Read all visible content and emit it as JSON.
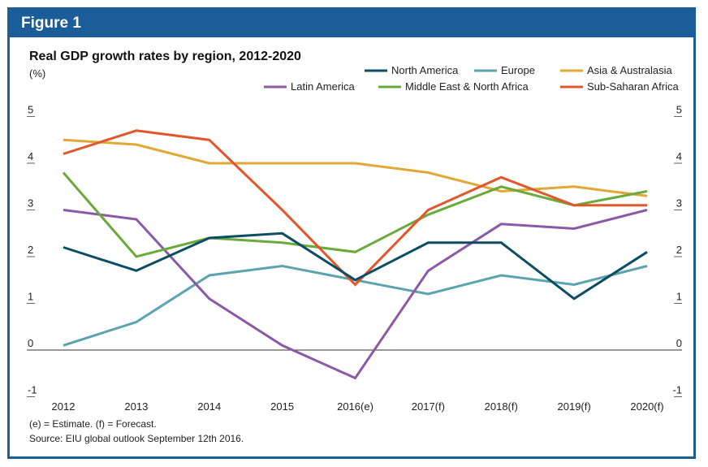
{
  "figure_label": "Figure 1",
  "chart_data": {
    "type": "line",
    "title": "Real GDP growth rates by region, 2012-2020",
    "ylabel": "(%)",
    "xlabel": "",
    "categories": [
      "2012",
      "2013",
      "2014",
      "2015",
      "2016(e)",
      "2017(f)",
      "2018(f)",
      "2019(f)",
      "2020(f)"
    ],
    "yticks": [
      5,
      4,
      3,
      2,
      1,
      0,
      -1
    ],
    "ylim": [
      -1,
      5
    ],
    "grid": false,
    "legend_position": "top-right",
    "series": [
      {
        "name": "North America",
        "color": "#0d4d63",
        "values": [
          2.2,
          1.7,
          2.4,
          2.5,
          1.5,
          2.3,
          2.3,
          1.1,
          2.1
        ]
      },
      {
        "name": "Europe",
        "color": "#5ba3ae",
        "values": [
          0.1,
          0.6,
          1.6,
          1.8,
          1.5,
          1.2,
          1.6,
          1.4,
          1.8
        ]
      },
      {
        "name": "Asia & Australasia",
        "color": "#e1a836",
        "values": [
          4.5,
          4.4,
          4.0,
          4.0,
          4.0,
          3.8,
          3.4,
          3.5,
          3.3
        ]
      },
      {
        "name": "Latin America",
        "color": "#8a5aa6",
        "values": [
          3.0,
          2.8,
          1.1,
          0.1,
          -0.6,
          1.7,
          2.7,
          2.6,
          3.0
        ]
      },
      {
        "name": "Middle East & North Africa",
        "color": "#6aaa3a",
        "values": [
          3.8,
          2.0,
          2.4,
          2.3,
          2.1,
          2.9,
          3.5,
          3.1,
          3.4
        ]
      },
      {
        "name": "Sub-Saharan Africa",
        "color": "#e0572b",
        "values": [
          4.2,
          4.7,
          4.5,
          3.0,
          1.4,
          3.0,
          3.7,
          3.1,
          3.1
        ]
      }
    ],
    "notes": [
      "(e) = Estimate.  (f) = Forecast.",
      "Source: EIU global outlook September 12th 2016."
    ]
  }
}
